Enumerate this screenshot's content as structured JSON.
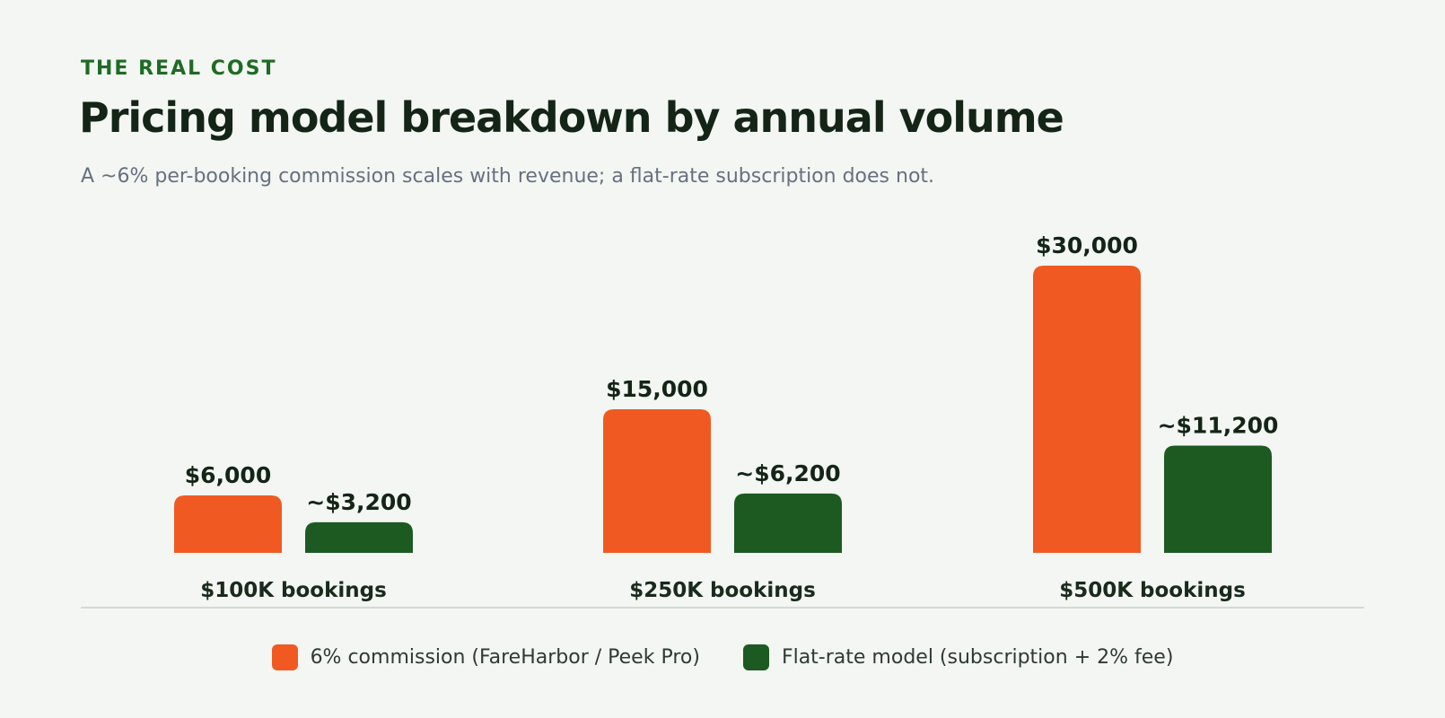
{
  "chart_data": {
    "type": "bar",
    "eyebrow": "THE REAL COST",
    "title": "Pricing model breakdown by annual volume",
    "subtitle": "A ~6% per-booking commission scales with revenue; a flat-rate subscription does not.",
    "categories": [
      "$100K bookings",
      "$250K bookings",
      "$500K bookings"
    ],
    "series": [
      {
        "name": "6% commission (FareHarbor / Peek Pro)",
        "color": "#f05a22",
        "values": [
          6000,
          15000,
          30000
        ],
        "value_labels": [
          "$6,000",
          "$15,000",
          "$30,000"
        ]
      },
      {
        "name": "Flat-rate model (subscription + 2% fee)",
        "color": "#1d5a22",
        "values": [
          3200,
          6200,
          11200
        ],
        "value_labels": [
          "~$3,200",
          "~$6,200",
          "~$11,200"
        ]
      }
    ],
    "legend": "bottom"
  }
}
